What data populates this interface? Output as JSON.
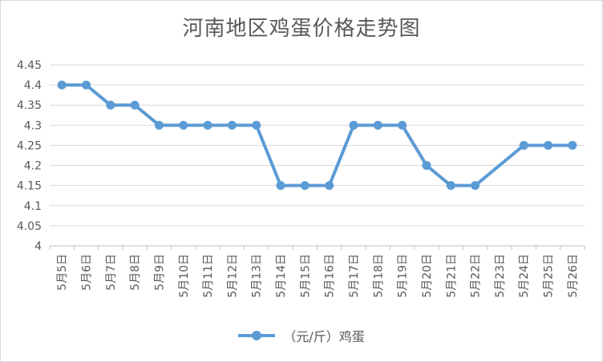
{
  "chart_data": {
    "type": "line",
    "title": "河南地区鸡蛋价格走势图",
    "categories": [
      "5月5日",
      "5月6日",
      "5月7日",
      "5月8日",
      "5月9日",
      "5月10日",
      "5月11日",
      "5月12日",
      "5月13日",
      "5月14日",
      "5月15日",
      "5月16日",
      "5月17日",
      "5月18日",
      "5月19日",
      "5月20日",
      "5月21日",
      "5月22日",
      "5月23日",
      "5月24日",
      "5月25日",
      "5月26日"
    ],
    "series": [
      {
        "name": "（元/斤）鸡蛋",
        "values": [
          4.4,
          4.4,
          4.35,
          4.35,
          4.3,
          4.3,
          4.3,
          4.3,
          4.3,
          4.15,
          4.15,
          4.15,
          4.3,
          4.3,
          4.3,
          4.2,
          4.15,
          4.15,
          null,
          4.25,
          4.25,
          4.25
        ],
        "color": "#5b9bd5"
      }
    ],
    "ylim": [
      4,
      4.45
    ],
    "yticks": [
      "4",
      "4.05",
      "4.1",
      "4.15",
      "4.2",
      "4.25",
      "4.3",
      "4.35",
      "4.4",
      "4.45"
    ],
    "grid": true,
    "legend_position": "bottom",
    "xlabel": "",
    "ylabel": ""
  }
}
